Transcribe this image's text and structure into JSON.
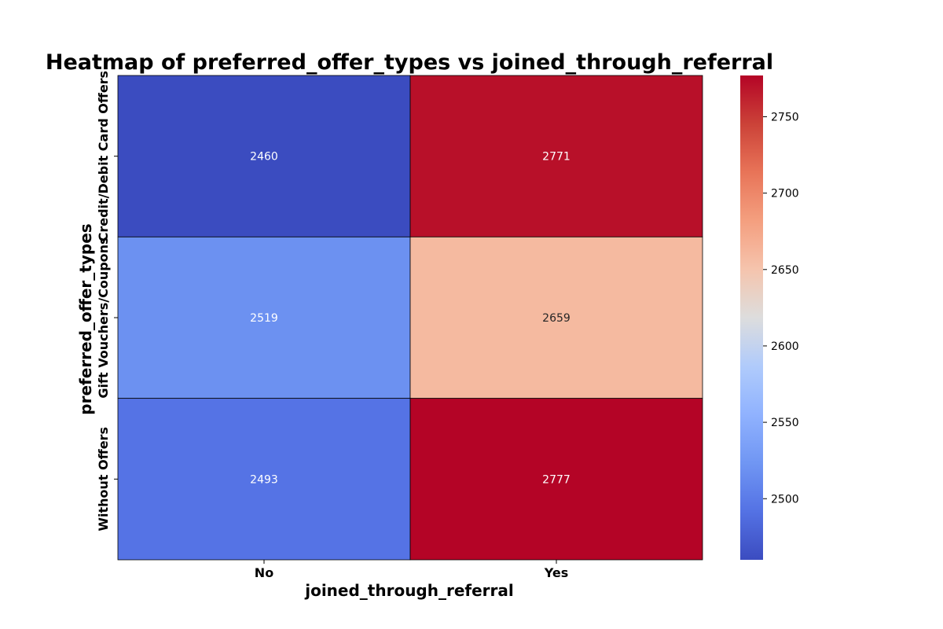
{
  "chart_data": {
    "type": "heatmap",
    "title": "Heatmap of preferred_offer_types vs joined_through_referral",
    "xlabel": "joined_through_referral",
    "ylabel": "preferred_offer_types",
    "x_categories": [
      "No",
      "Yes"
    ],
    "y_categories": [
      "Credit/Debit Card Offers",
      "Gift Vouchers/Coupons",
      "Without Offers"
    ],
    "values": [
      [
        2460,
        2771
      ],
      [
        2519,
        2659
      ],
      [
        2493,
        2777
      ]
    ],
    "colormap": "coolwarm",
    "vmin": 2460,
    "vmax": 2777,
    "colorbar_ticks": [
      2500,
      2550,
      2600,
      2650,
      2700,
      2750
    ],
    "annotations": true,
    "grid": false
  }
}
